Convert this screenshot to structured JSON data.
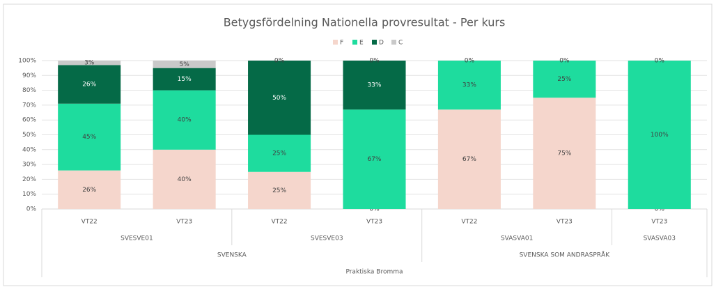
{
  "chart_data": {
    "type": "stacked_bar",
    "title": "Betygsfördelning Nationella provresultat - Per kurs",
    "category_tree": {
      "label": "Praktiska Bromma",
      "groups": [
        {
          "label": "SVENSKA",
          "groups": [
            {
              "label": "SVESVE01",
              "categories": [
                "VT22",
                "VT23"
              ]
            },
            {
              "label": "SVESVE03",
              "categories": [
                "VT22",
                "VT23"
              ]
            }
          ]
        },
        {
          "label": "SVENSKA SOM ANDRASPRÅK",
          "groups": [
            {
              "label": "SVASVA01",
              "categories": [
                "VT22",
                "VT23"
              ]
            },
            {
              "label": "SVASVA03",
              "categories": [
                "VT23"
              ]
            }
          ]
        }
      ]
    },
    "series": [
      {
        "name": "F",
        "color": "#f5d6cc",
        "values": [
          26,
          40,
          25,
          0,
          67,
          75,
          0
        ],
        "value_labels": [
          "26%",
          "40%",
          "25%",
          "0%",
          "67%",
          "75%",
          "0%"
        ]
      },
      {
        "name": "E",
        "color": "#1edc9e",
        "values": [
          45,
          40,
          25,
          67,
          33,
          25,
          100
        ],
        "value_labels": [
          "45%",
          "40%",
          "25%",
          "67%",
          "33%",
          "25%",
          "100%"
        ]
      },
      {
        "name": "D",
        "color": "#056a47",
        "values": [
          26,
          15,
          50,
          33,
          0,
          0,
          0
        ],
        "value_labels": [
          "26%",
          "15%",
          "50%",
          "33%",
          null,
          null,
          null
        ]
      },
      {
        "name": "C",
        "color": "#c9c9c9",
        "values": [
          3,
          5,
          0,
          0,
          0,
          0,
          0
        ],
        "value_labels": [
          "3%",
          "5%",
          "0%",
          "0%",
          "0%",
          "0%",
          "0%"
        ]
      }
    ],
    "ylim": [
      0,
      100
    ],
    "yticks": [
      {
        "value": 0,
        "label": "0%"
      },
      {
        "value": 10,
        "label": "10%"
      },
      {
        "value": 20,
        "label": "20%"
      },
      {
        "value": 30,
        "label": "30%"
      },
      {
        "value": 40,
        "label": "40%"
      },
      {
        "value": 50,
        "label": "50%"
      },
      {
        "value": 60,
        "label": "60%"
      },
      {
        "value": 70,
        "label": "70%"
      },
      {
        "value": 80,
        "label": "80%"
      },
      {
        "value": 90,
        "label": "90%"
      },
      {
        "value": 100,
        "label": "100%"
      }
    ],
    "grid": true,
    "legend": "top"
  }
}
